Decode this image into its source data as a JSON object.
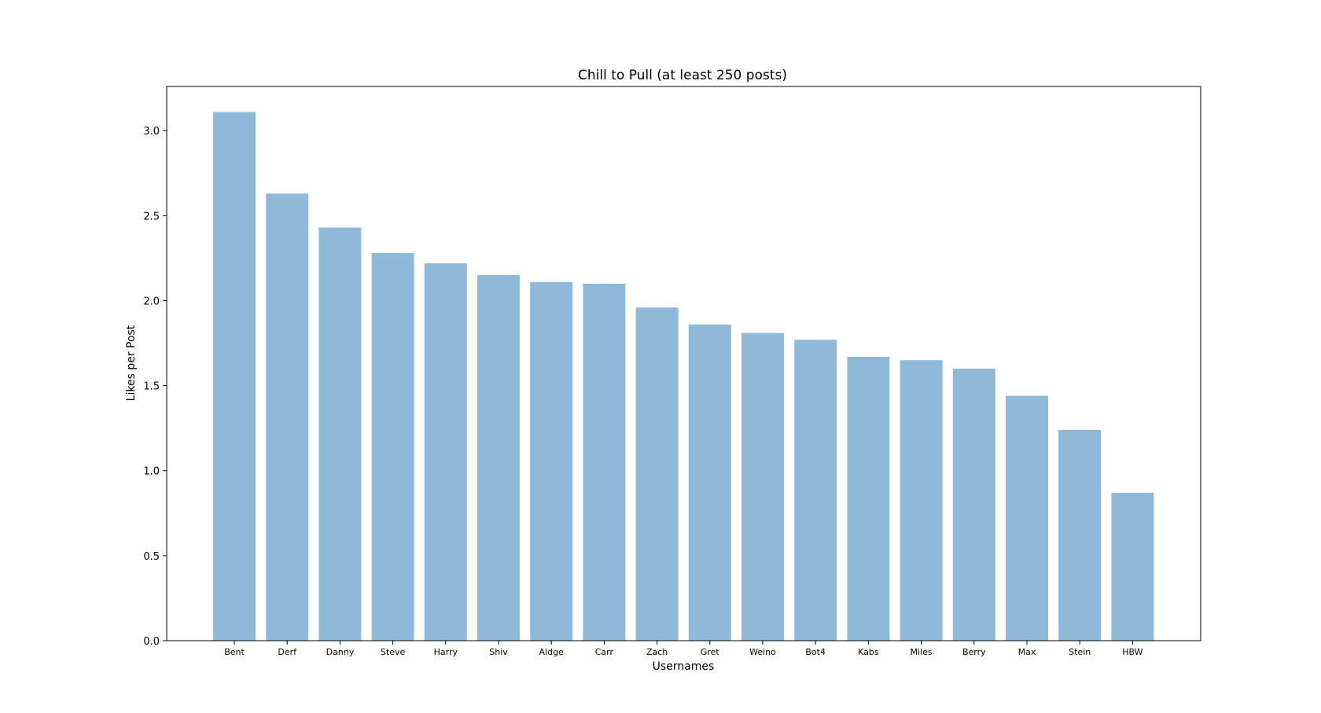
{
  "chart_data": {
    "type": "bar",
    "title": "Chill to Pull (at least 250 posts)",
    "xlabel": "Usernames",
    "ylabel": "Likes per Post",
    "categories": [
      "Bent",
      "Derf",
      "Danny",
      "Steve",
      "Harry",
      "Shiv",
      "Aidge",
      "Carr",
      "Zach",
      "Gret",
      "Weino",
      "Bot4",
      "Kabs",
      "Miles",
      "Berry",
      "Max",
      "Stein",
      "HBW"
    ],
    "values": [
      3.11,
      2.63,
      2.43,
      2.28,
      2.22,
      2.15,
      2.11,
      2.1,
      1.96,
      1.86,
      1.81,
      1.77,
      1.67,
      1.65,
      1.6,
      1.44,
      1.24,
      0.87
    ],
    "ylim": [
      0,
      3.26
    ],
    "yticks": [
      "0.0",
      "0.5",
      "1.0",
      "1.5",
      "2.0",
      "2.5",
      "3.0"
    ],
    "bar_color": "#8fb9d9",
    "grid": false,
    "legend": "none"
  }
}
